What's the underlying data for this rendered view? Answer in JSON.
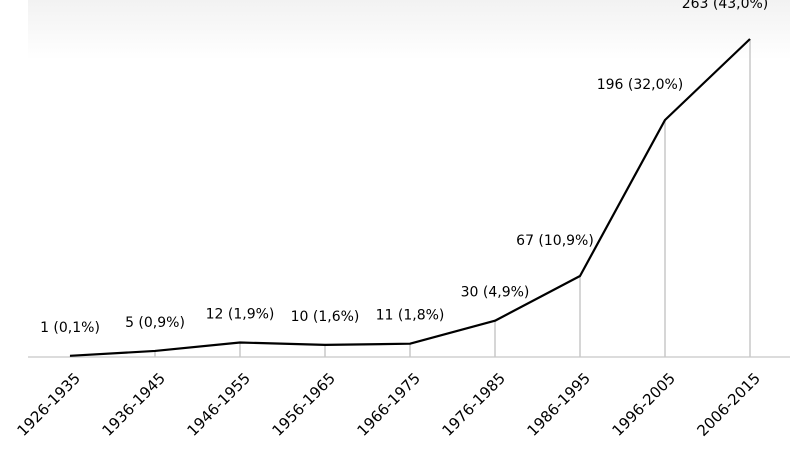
{
  "chart_data": {
    "type": "line",
    "categories": [
      "1926-1935",
      "1936-1945",
      "1946-1955",
      "1956-1965",
      "1966-1975",
      "1976-1985",
      "1986-1995",
      "1996-2005",
      "2006-2015"
    ],
    "values": [
      1,
      5,
      12,
      10,
      11,
      30,
      67,
      196,
      263
    ],
    "value_labels": [
      "1 (0,1%)",
      "5 (0,9%)",
      "12 (1,9%)",
      "10 (1,6%)",
      "11 (1,8%)",
      "30 (4,9%)",
      "67 (10,9%)",
      "196 (32,0%)",
      "263 (43,0%)"
    ],
    "color": "#000000",
    "drop_lines": true
  }
}
